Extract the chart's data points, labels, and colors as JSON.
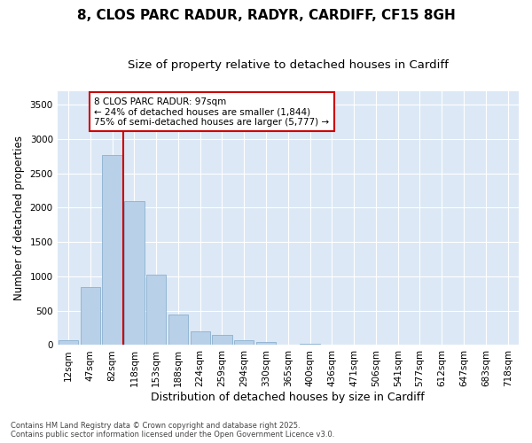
{
  "title_line1": "8, CLOS PARC RADUR, RADYR, CARDIFF, CF15 8GH",
  "title_line2": "Size of property relative to detached houses in Cardiff",
  "xlabel": "Distribution of detached houses by size in Cardiff",
  "ylabel": "Number of detached properties",
  "categories": [
    "12sqm",
    "47sqm",
    "82sqm",
    "118sqm",
    "153sqm",
    "188sqm",
    "224sqm",
    "259sqm",
    "294sqm",
    "330sqm",
    "365sqm",
    "400sqm",
    "436sqm",
    "471sqm",
    "506sqm",
    "541sqm",
    "577sqm",
    "612sqm",
    "647sqm",
    "683sqm",
    "718sqm"
  ],
  "values": [
    70,
    850,
    2760,
    2100,
    1020,
    450,
    200,
    150,
    65,
    45,
    5,
    20,
    5,
    2,
    2,
    1,
    1,
    0,
    0,
    0,
    0
  ],
  "bar_color": "#b8d0e8",
  "bar_edge_color": "#8ab0d0",
  "vline_x_idx": 2,
  "vline_color": "#cc0000",
  "annotation_box_text": "8 CLOS PARC RADUR: 97sqm\n← 24% of detached houses are smaller (1,844)\n75% of semi-detached houses are larger (5,777) →",
  "annotation_facecolor": "white",
  "annotation_edgecolor": "#cc0000",
  "ylim": [
    0,
    3700
  ],
  "yticks": [
    0,
    500,
    1000,
    1500,
    2000,
    2500,
    3000,
    3500
  ],
  "bg_color": "#dce8f5",
  "footer_text": "Contains HM Land Registry data © Crown copyright and database right 2025.\nContains public sector information licensed under the Open Government Licence v3.0.",
  "title_fontsize": 11,
  "subtitle_fontsize": 9.5,
  "tick_fontsize": 7.5,
  "ylabel_fontsize": 8.5,
  "xlabel_fontsize": 9
}
